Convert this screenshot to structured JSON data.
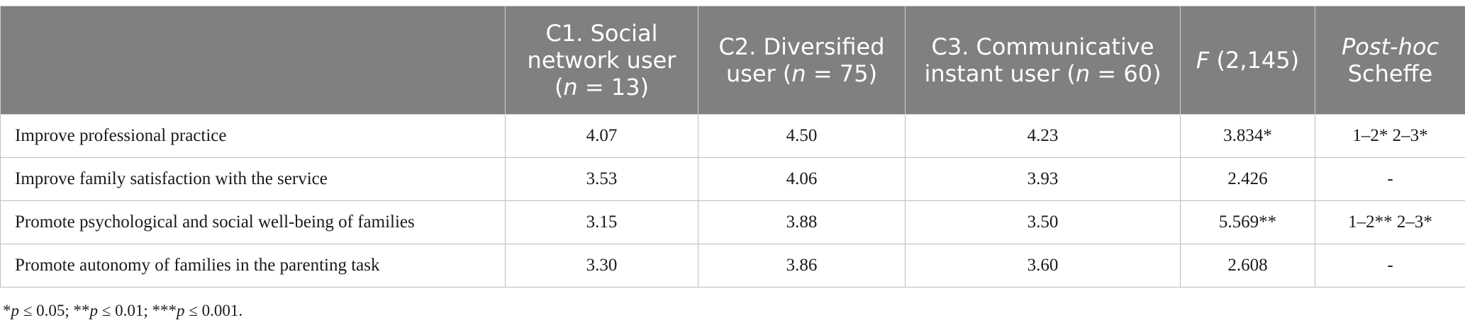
{
  "table": {
    "headers": {
      "c1": {
        "line1": "C1. Social",
        "line2": "network user",
        "pre": "(",
        "n": "n",
        "post": " = 13)"
      },
      "c2": {
        "line1": "C2. Diversified",
        "pre": "user (",
        "n": "n",
        "post": " = 75)"
      },
      "c3": {
        "line1": "C3. Communicative",
        "pre": "instant user (",
        "n": "n",
        "post": " = 60)"
      },
      "f": {
        "italic": "F",
        "rest": " (2,145)"
      },
      "posthoc": {
        "italic": "Post-hoc",
        "line2": "Scheffe"
      }
    },
    "rows": [
      {
        "label": "Improve professional practice",
        "c1": "4.07",
        "c2": "4.50",
        "c3": "4.23",
        "f": "3.834*",
        "scheffe": "1–2* 2–3*"
      },
      {
        "label": "Improve family satisfaction with the service",
        "c1": "3.53",
        "c2": "4.06",
        "c3": "3.93",
        "f": "2.426",
        "scheffe": "-"
      },
      {
        "label": "Promote psychological and social well-being of families",
        "c1": "3.15",
        "c2": "3.88",
        "c3": "3.50",
        "f": "5.569**",
        "scheffe": "1–2** 2–3*"
      },
      {
        "label": "Promote autonomy of families in the parenting task",
        "c1": "3.30",
        "c2": "3.86",
        "c3": "3.60",
        "f": "2.608",
        "scheffe": "-"
      }
    ]
  },
  "footnote": {
    "a1": "*",
    "p1": "p",
    "b1": " ≤ 0.05; **",
    "p2": "p",
    "b2": " ≤ 0.01; ***",
    "p3": "p",
    "b3": " ≤ 0.001."
  },
  "colors": {
    "header_bg": "#808080",
    "header_text": "#ffffff",
    "border": "#bdbdbd"
  }
}
